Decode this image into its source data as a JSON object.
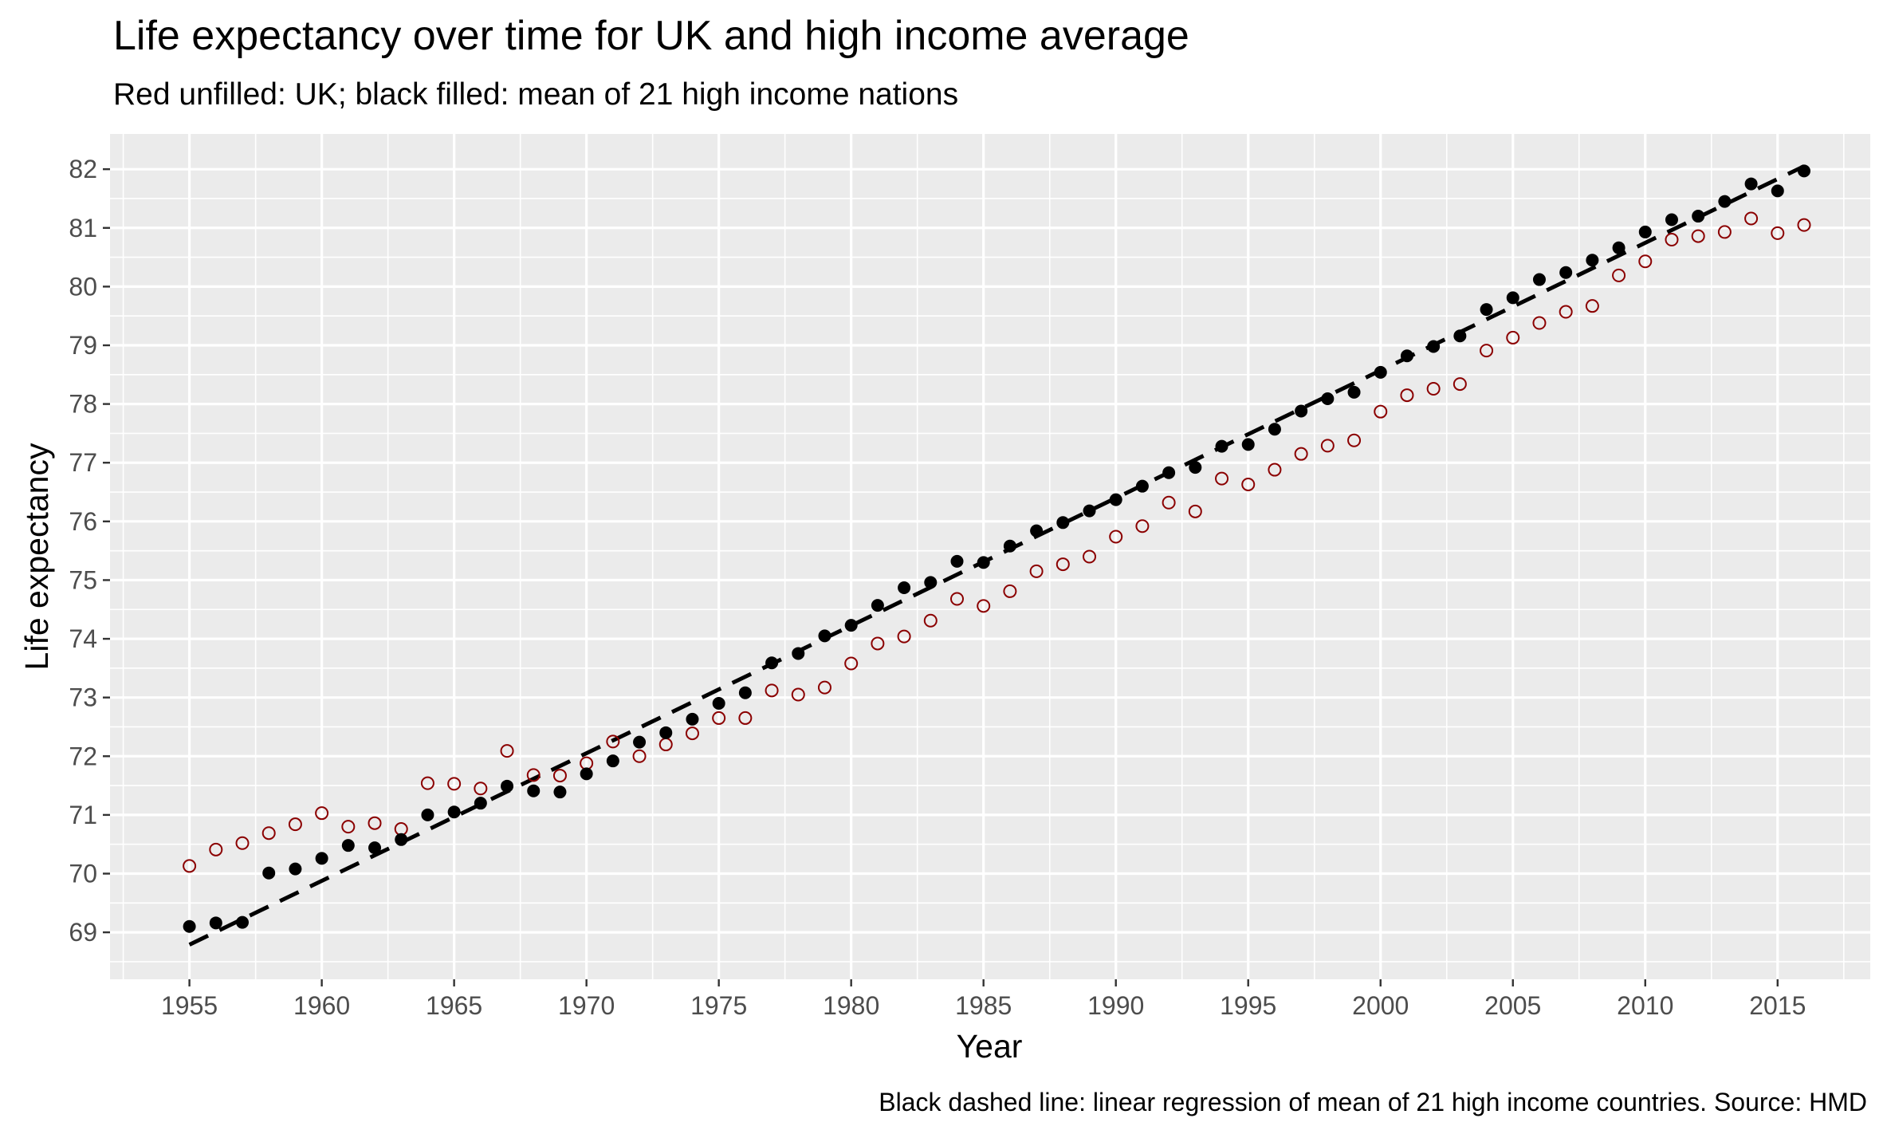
{
  "chart_data": {
    "type": "scatter",
    "title": "Life expectancy over time for UK and high income average",
    "subtitle": "Red unfilled: UK; black filled: mean of 21 high income nations",
    "xlabel": "Year",
    "ylabel": "Life expectancy",
    "caption": "Black dashed line: linear regression of mean of 21 high income countries. Source: HMD",
    "xlim": [
      1952,
      2018.5
    ],
    "ylim": [
      68.2,
      82.6
    ],
    "x_ticks": [
      "1955",
      "1960",
      "1965",
      "1970",
      "1975",
      "1980",
      "1985",
      "1990",
      "1995",
      "2000",
      "2005",
      "2010",
      "2015"
    ],
    "y_ticks": [
      "69",
      "70",
      "71",
      "72",
      "73",
      "74",
      "75",
      "76",
      "77",
      "78",
      "79",
      "80",
      "81",
      "82"
    ],
    "grid": true,
    "colors": {
      "uk": "#8b0000",
      "high_income": "#000000",
      "panel": "#ebebeb",
      "grid": "#ffffff"
    },
    "series": [
      {
        "marker": "open-circle",
        "x": [
          1955,
          1956,
          1957,
          1958,
          1959,
          1960,
          1961,
          1962,
          1963,
          1964,
          1965,
          1966,
          1967,
          1968,
          1969,
          1970,
          1971,
          1972,
          1973,
          1974,
          1975,
          1976,
          1977,
          1978,
          1979,
          1980,
          1981,
          1982,
          1983,
          1984,
          1985,
          1986,
          1987,
          1988,
          1989,
          1990,
          1991,
          1992,
          1993,
          1994,
          1995,
          1996,
          1997,
          1998,
          1999,
          2000,
          2001,
          2002,
          2003,
          2004,
          2005,
          2006,
          2007,
          2008,
          2009,
          2010,
          2011,
          2012,
          2013,
          2014,
          2015,
          2016
        ],
        "values": [
          70.13,
          70.41,
          70.52,
          70.69,
          70.84,
          71.03,
          70.8,
          70.86,
          70.76,
          71.54,
          71.53,
          71.45,
          72.09,
          71.68,
          71.67,
          71.88,
          72.25,
          72.0,
          72.2,
          72.39,
          72.65,
          72.65,
          73.12,
          73.05,
          73.17,
          73.58,
          73.92,
          74.04,
          74.31,
          74.68,
          74.56,
          74.81,
          75.15,
          75.27,
          75.4,
          75.74,
          75.92,
          76.32,
          76.17,
          76.73,
          76.63,
          76.88,
          77.15,
          77.29,
          77.38,
          77.87,
          78.15,
          78.26,
          78.34,
          78.91,
          79.13,
          79.38,
          79.57,
          79.67,
          80.19,
          80.43,
          80.8,
          80.86,
          80.93,
          81.16,
          80.91,
          81.05
        ]
      },
      {
        "marker": "filled-circle",
        "x": [
          1955,
          1956,
          1957,
          1958,
          1959,
          1960,
          1961,
          1962,
          1963,
          1964,
          1965,
          1966,
          1967,
          1968,
          1969,
          1970,
          1971,
          1972,
          1973,
          1974,
          1975,
          1976,
          1977,
          1978,
          1979,
          1980,
          1981,
          1982,
          1983,
          1984,
          1985,
          1986,
          1987,
          1988,
          1989,
          1990,
          1991,
          1992,
          1993,
          1994,
          1995,
          1996,
          1997,
          1998,
          1999,
          2000,
          2001,
          2002,
          2003,
          2004,
          2005,
          2006,
          2007,
          2008,
          2009,
          2010,
          2011,
          2012,
          2013,
          2014,
          2015,
          2016
        ],
        "values": [
          69.1,
          69.16,
          69.17,
          70.01,
          70.08,
          70.26,
          70.48,
          70.44,
          70.58,
          71.0,
          71.05,
          71.2,
          71.49,
          71.41,
          71.39,
          71.7,
          71.92,
          72.24,
          72.4,
          72.63,
          72.9,
          73.08,
          73.59,
          73.75,
          74.05,
          74.23,
          74.57,
          74.87,
          74.96,
          75.32,
          75.3,
          75.58,
          75.84,
          75.98,
          76.18,
          76.37,
          76.6,
          76.83,
          76.92,
          77.28,
          77.31,
          77.57,
          77.88,
          78.09,
          78.2,
          78.54,
          78.82,
          78.98,
          79.16,
          79.61,
          79.81,
          80.12,
          80.24,
          80.45,
          80.66,
          80.93,
          81.14,
          81.2,
          81.45,
          81.75,
          81.63,
          81.97
        ]
      }
    ],
    "regression": {
      "style": "dashed",
      "x": [
        1955,
        2016
      ],
      "values": [
        68.79,
        82.05
      ]
    }
  }
}
